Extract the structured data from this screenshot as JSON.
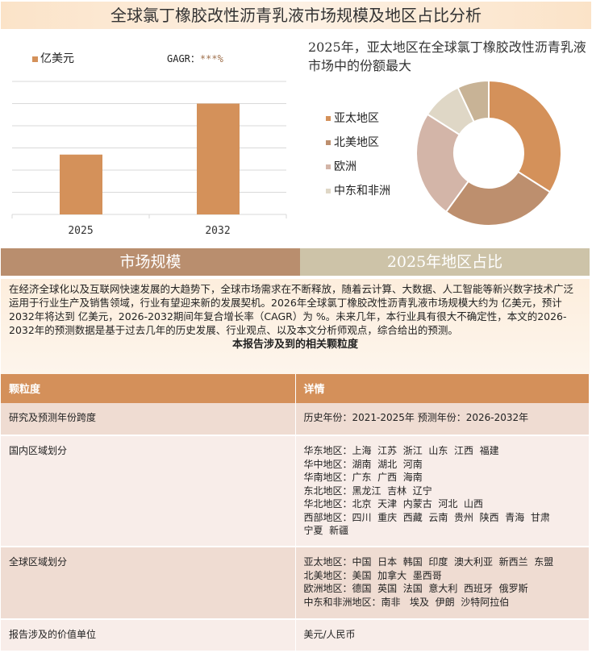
{
  "title": "全球氯丁橡胶改性沥青乳液市场规模及地区占比分析",
  "chart_data": [
    {
      "type": "bar",
      "categories": [
        "2025",
        "2032"
      ],
      "values": [
        2.7,
        5.0
      ],
      "ylim": [
        0,
        6
      ],
      "grid": true,
      "legend": "亿美元",
      "cagr_label": "GAGR：",
      "cagr_value": "***%",
      "color": "#d4915a"
    },
    {
      "type": "pie",
      "title": "2025年，亚太地区在全球氯丁橡胶改性沥青乳液市场中的份额最大",
      "categories": [
        "亚太地区",
        "北美地区",
        "欧洲",
        "中东和非洲",
        ""
      ],
      "values": [
        34,
        26,
        24,
        9,
        7
      ],
      "colors": [
        "#d4915a",
        "#bd8f6e",
        "#d3b5a8",
        "#dfd7c6",
        "#c8b396"
      ],
      "legend": "left",
      "donut": true
    }
  ],
  "tabs": {
    "market": "市场规模",
    "region": "2025年地区占比"
  },
  "description": "在经济全球化以及互联网快速发展的大趋势下，全球市场需求在不断释放，随着云计算、大数据、人工智能等新兴数字技术广泛运用于行业生产及销售领域，行业有望迎来新的发展契机。2026年全球氯丁橡胶改性沥青乳液市场规模大约为 亿美元，预计2032年将达到 亿美元，2026-2032期间年复合增长率（CAGR）为 %。未来几年，本行业具有很大不确定性，本文的2026-2032年的预测数据是基于过去几年的历史发展、行业观点、以及本文分析师观点，综合给出的预测。",
  "table": {
    "caption": "本报告涉及到的相关颗粒度",
    "headers": [
      "颗粒度",
      "详情"
    ],
    "rows": [
      {
        "label": "研究及预测年份跨度",
        "lines": [
          "历史年份：2021-2025年 预测年份：2026-2032年"
        ]
      },
      {
        "label": "国内区域划分",
        "lines": [
          "华东地区：上海  江苏  浙江  山东  江西  福建",
          "华中地区：湖南  湖北  河南",
          "华南地区：广东  广西  海南",
          "东北地区：黑龙江  吉林  辽宁",
          "华北地区：北京  天津  内蒙古  河北  山西",
          "西部地区：四川  重庆  西藏  云南  贵州  陕西  青海  甘肃",
          "宁夏  新疆"
        ]
      },
      {
        "label": "全球区域划分",
        "lines": [
          "亚太地区：中国  日本  韩国  印度  澳大利亚  新西兰  东盟",
          "北美地区：美国  加拿大  墨西哥",
          "欧洲地区：德国  英国  法国  意大利  西班牙  俄罗斯",
          "中东和非洲地区：南非   埃及  伊朗  沙特阿拉伯"
        ]
      },
      {
        "label": "报告涉及的价值单位",
        "lines": [
          "美元/人民币"
        ]
      }
    ]
  }
}
